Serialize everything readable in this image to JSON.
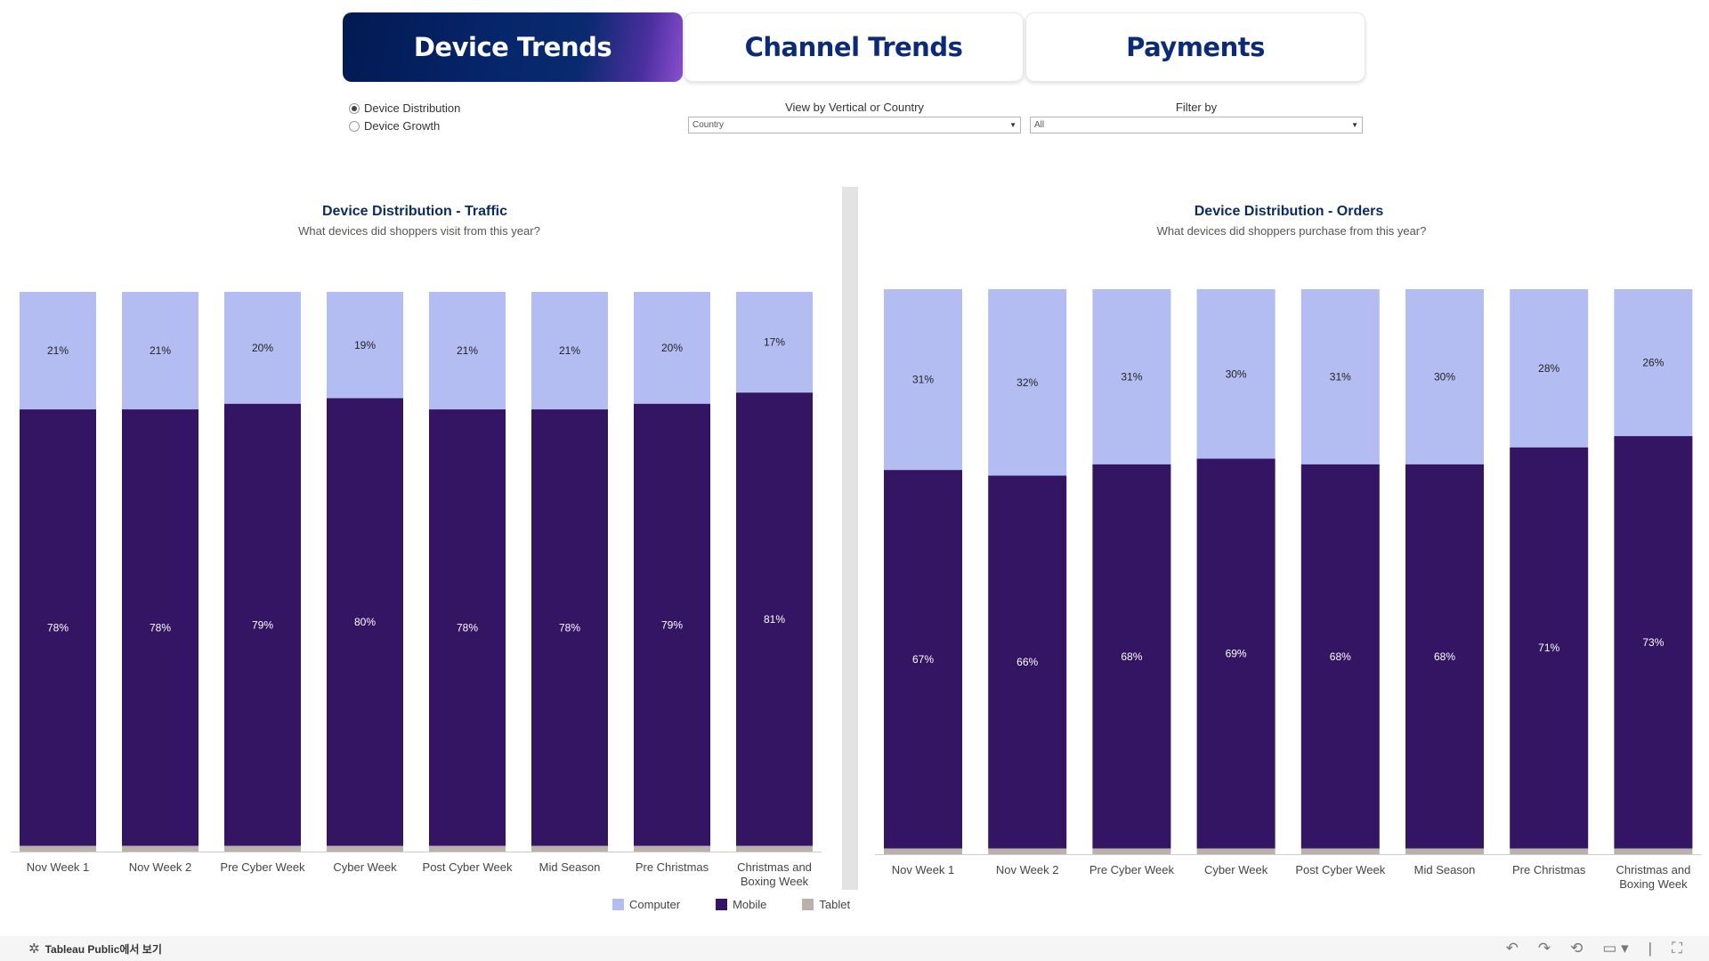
{
  "tabs": [
    {
      "label": "Device Trends"
    },
    {
      "label": "Channel Trends"
    },
    {
      "label": "Payments"
    }
  ],
  "radio": {
    "options": [
      "Device Distribution",
      "Device Growth"
    ],
    "selected": "Device Distribution"
  },
  "view_by": {
    "title": "View by Vertical or Country",
    "value": "Country"
  },
  "filter_by": {
    "title": "Filter by",
    "value": "All"
  },
  "colors": {
    "computer": "#b4bdf1",
    "mobile": "#331563",
    "tablet": "#bab0ac",
    "tab_text": "#0b2b78"
  },
  "legend": [
    {
      "label": "Computer",
      "color": "#b4bdf1"
    },
    {
      "label": "Mobile",
      "color": "#331563"
    },
    {
      "label": "Tablet",
      "color": "#bab0ac"
    }
  ],
  "footer": {
    "brand": "Tableau Public에서 보기"
  },
  "chart_data": [
    {
      "type": "bar",
      "stacked": true,
      "title": "Device Distribution - Traffic",
      "subtitle": "What devices did shoppers visit from this year?",
      "categories": [
        "Nov Week 1",
        "Nov Week 2",
        "Pre Cyber Week",
        "Cyber Week",
        "Post Cyber Week",
        "Mid Season",
        "Pre Christmas",
        "Christmas and Boxing Week"
      ],
      "series": [
        {
          "name": "Computer",
          "values": [
            21,
            21,
            20,
            19,
            21,
            21,
            20,
            17
          ]
        },
        {
          "name": "Mobile",
          "values": [
            78,
            78,
            79,
            80,
            78,
            78,
            79,
            81
          ]
        },
        {
          "name": "Tablet",
          "values": [
            1,
            1,
            1,
            1,
            1,
            1,
            1,
            1
          ]
        }
      ],
      "ylim": [
        0,
        100
      ]
    },
    {
      "type": "bar",
      "stacked": true,
      "title": "Device Distribution - Orders",
      "subtitle": "What devices did shoppers purchase from this year?",
      "categories": [
        "Nov Week 1",
        "Nov Week 2",
        "Pre Cyber Week",
        "Cyber Week",
        "Post Cyber Week",
        "Mid Season",
        "Pre Christmas",
        "Christmas and Boxing Week"
      ],
      "series": [
        {
          "name": "Computer",
          "values": [
            31,
            32,
            31,
            30,
            31,
            30,
            28,
            26
          ]
        },
        {
          "name": "Mobile",
          "values": [
            67,
            66,
            68,
            69,
            68,
            68,
            71,
            73
          ]
        },
        {
          "name": "Tablet",
          "values": [
            1,
            1,
            1,
            1,
            1,
            1,
            1,
            1
          ]
        }
      ],
      "ylim": [
        0,
        100
      ]
    }
  ]
}
